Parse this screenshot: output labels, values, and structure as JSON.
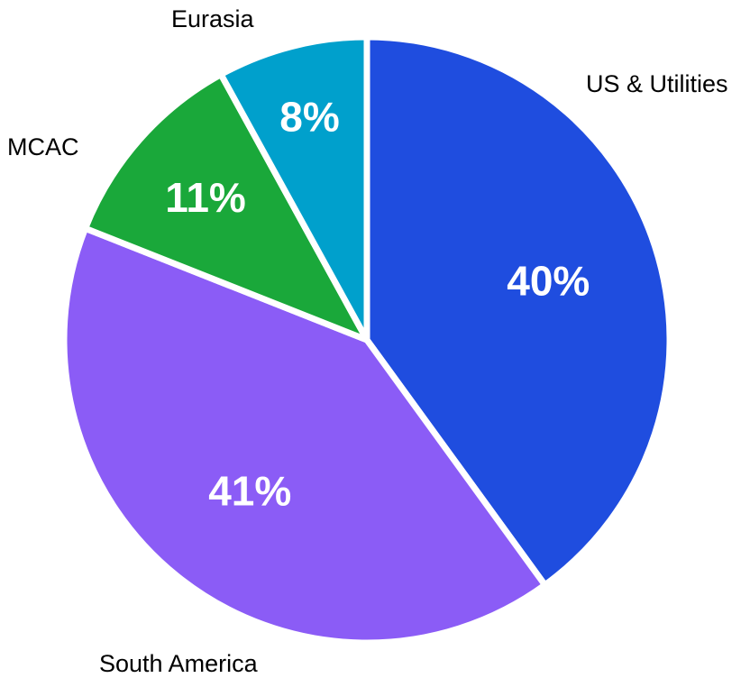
{
  "chart_data": {
    "type": "pie",
    "title": "",
    "categories": [
      "US & Utilities",
      "South America",
      "MCAC",
      "Eurasia"
    ],
    "values": [
      40,
      41,
      11,
      8
    ],
    "labels": [
      "40%",
      "41%",
      "11%",
      "8%"
    ],
    "colors": [
      "#1f4ddf",
      "#8b5cf6",
      "#1aa83a",
      "#00a0cc"
    ],
    "start_angle": "12 o'clock",
    "direction": "clockwise",
    "legend": "none",
    "category_labels": "outside"
  }
}
